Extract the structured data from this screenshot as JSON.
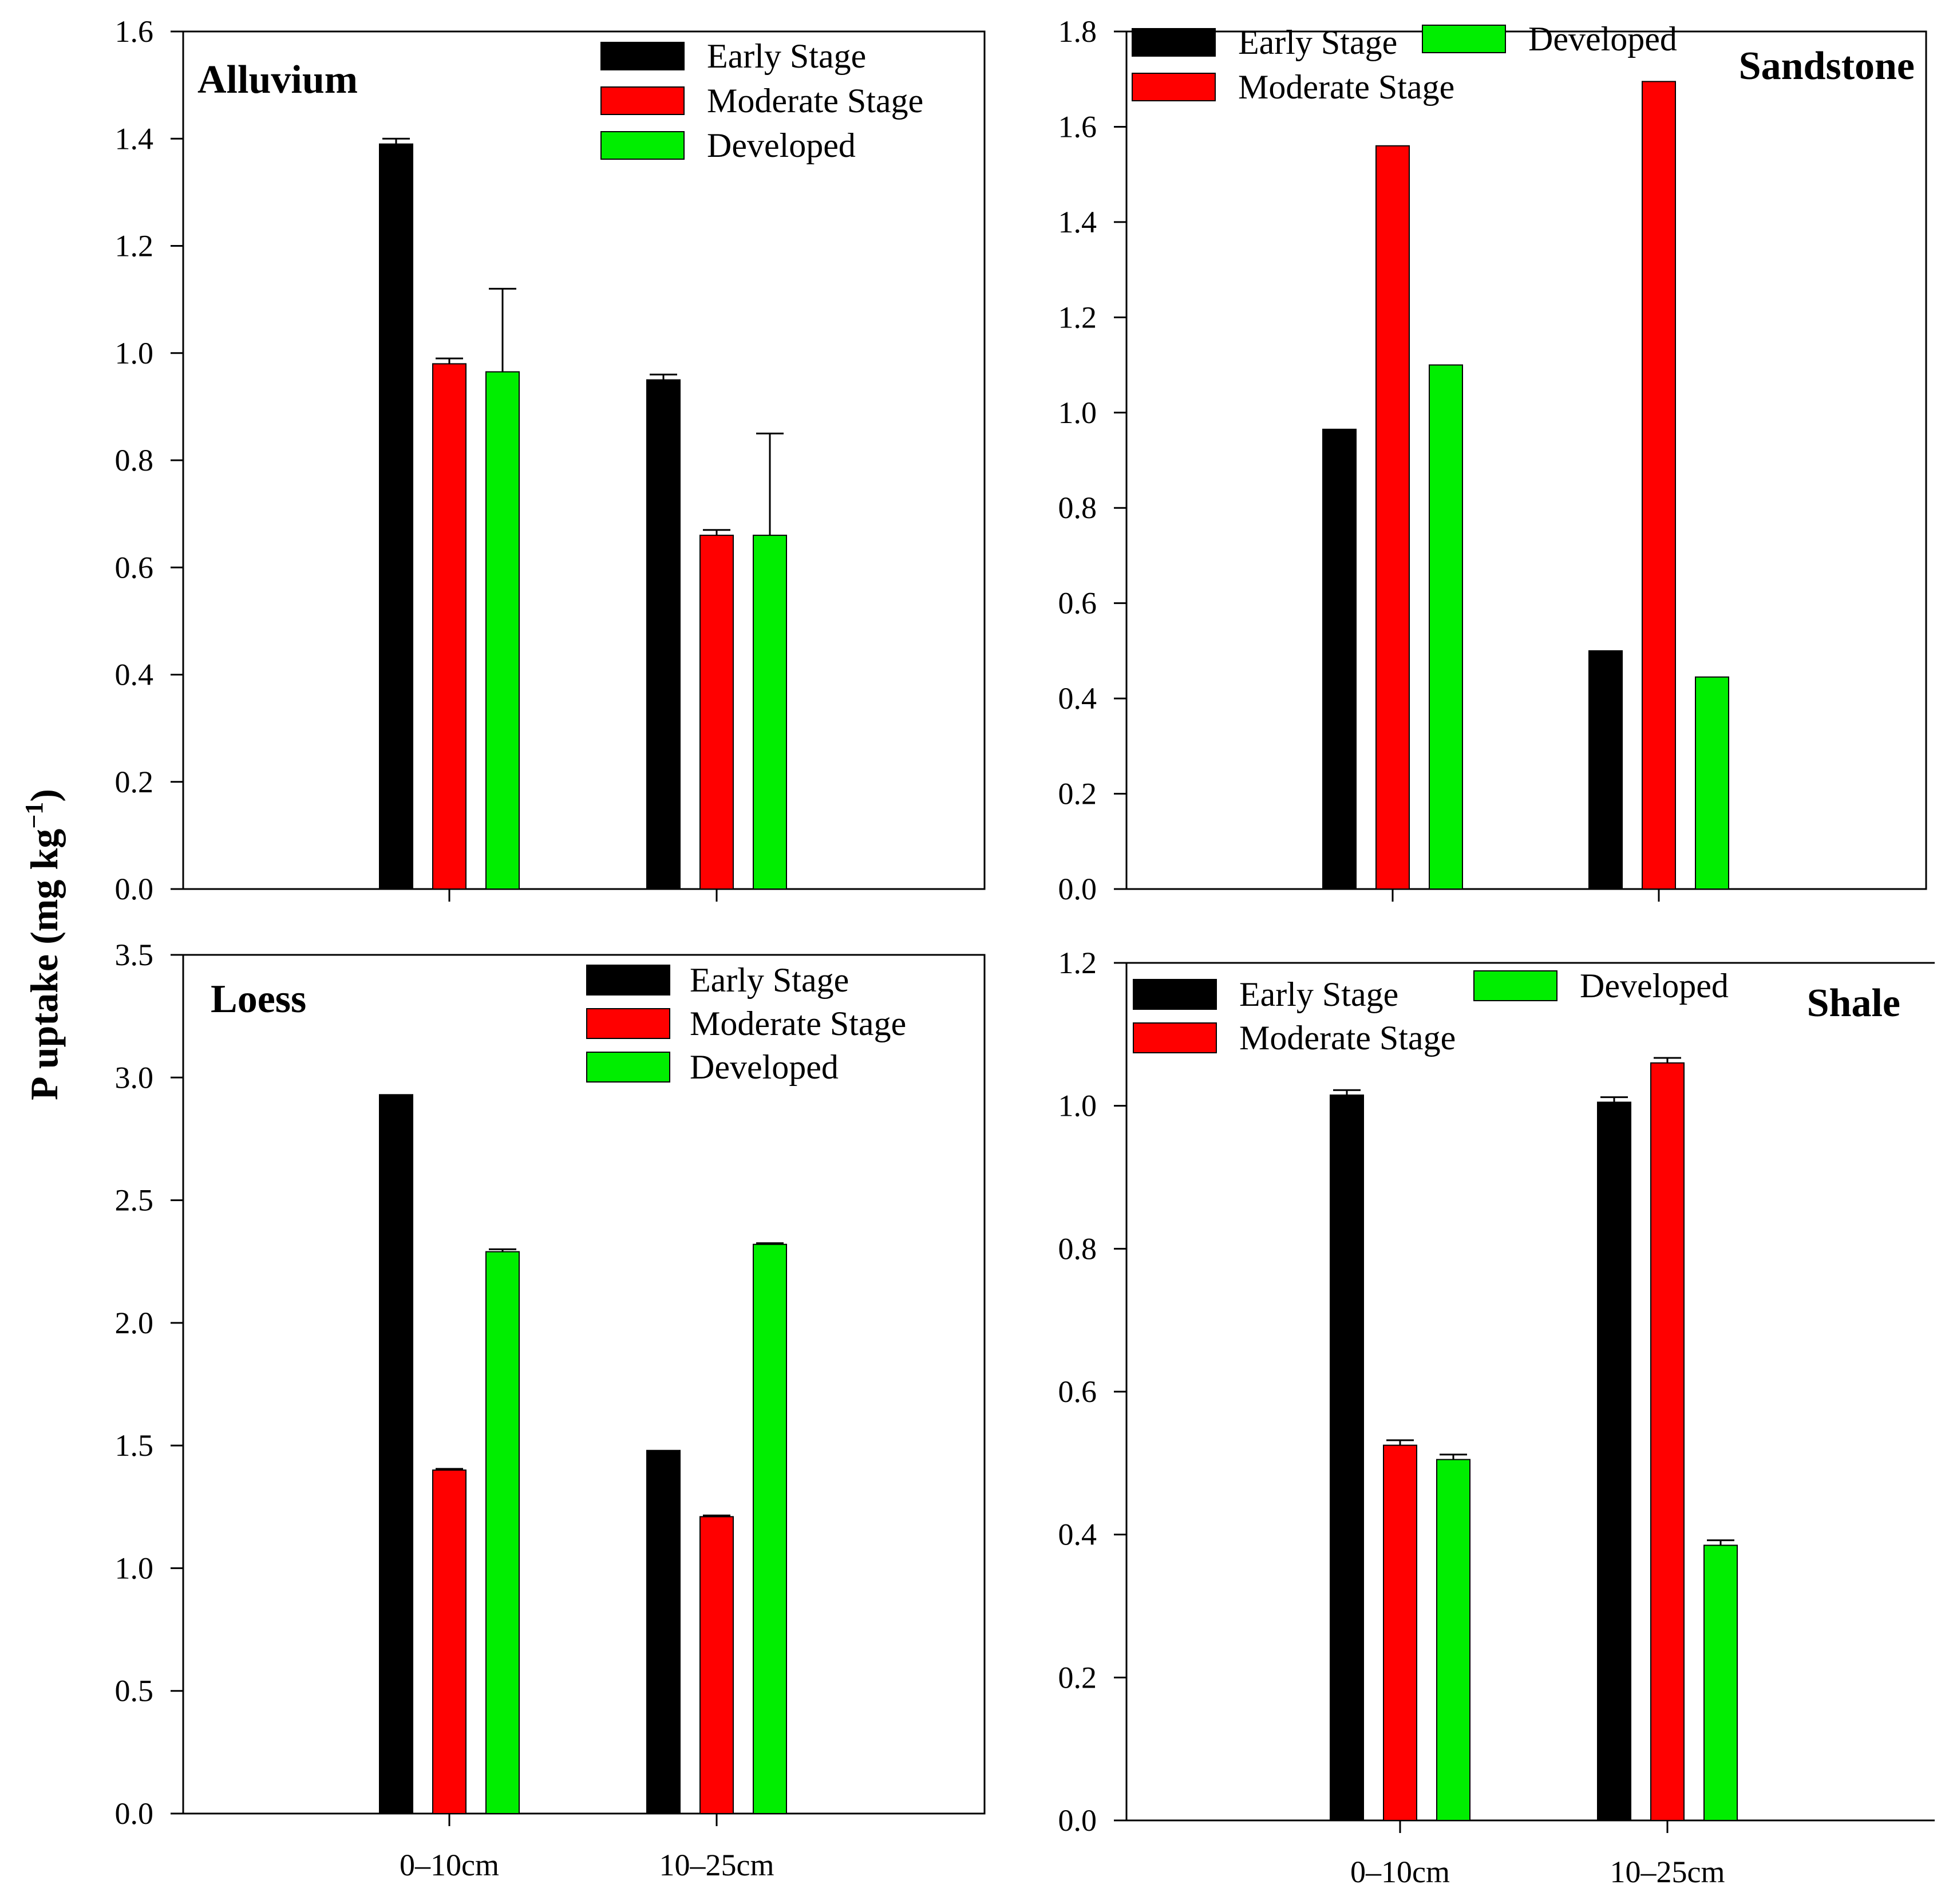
{
  "figure": {
    "ylabel": "P uptake (mg kg −1)",
    "ylabel_main": "P uptake (mg kg",
    "ylabel_sup": "−1",
    "ylabel_close": ")"
  },
  "colors": {
    "early": "#000000",
    "moderate": "#ff0000",
    "developed": "#00ee00"
  },
  "chart_data": [
    {
      "type": "bar",
      "title": "Alluvium",
      "categories": [
        "0–10cm",
        "10–25cm"
      ],
      "show_category_labels": false,
      "ylim": [
        0,
        1.6
      ],
      "yticks": [
        "0.0",
        "0.2",
        "0.4",
        "0.6",
        "0.8",
        "1.0",
        "1.2",
        "1.4",
        "1.6"
      ],
      "series": [
        {
          "name": "Early Stage",
          "values": [
            1.39,
            0.95
          ],
          "errors": [
            0.01,
            0.01
          ]
        },
        {
          "name": "Moderate Stage",
          "values": [
            0.98,
            0.66
          ],
          "errors": [
            0.01,
            0.01
          ]
        },
        {
          "name": "Developed",
          "values": [
            0.965,
            0.66
          ],
          "errors": [
            0.155,
            0.19
          ]
        }
      ],
      "legend": {
        "order": [
          "Early Stage",
          "Moderate Stage",
          "Developed"
        ],
        "placement": "top-right"
      }
    },
    {
      "type": "bar",
      "title": "Sandstone",
      "categories": [
        "0–10cm",
        "10–25cm"
      ],
      "show_category_labels": false,
      "ylim": [
        0,
        1.8
      ],
      "yticks": [
        "0.0",
        "0.2",
        "0.4",
        "0.6",
        "0.8",
        "1.0",
        "1.2",
        "1.4",
        "1.6",
        "1.8"
      ],
      "series": [
        {
          "name": "Early Stage",
          "values": [
            0.965,
            0.5
          ],
          "errors": [
            0,
            0
          ]
        },
        {
          "name": "Moderate Stage",
          "values": [
            1.56,
            1.695
          ],
          "errors": [
            0,
            0
          ]
        },
        {
          "name": "Developed",
          "values": [
            1.1,
            0.445
          ],
          "errors": [
            0,
            0
          ]
        }
      ],
      "legend": {
        "order": [
          "Early Stage",
          "Developed",
          "Moderate Stage"
        ],
        "placement": "top-left"
      }
    },
    {
      "type": "bar",
      "title": "Loess",
      "categories": [
        "0–10cm",
        "10–25cm"
      ],
      "show_category_labels": true,
      "ylim": [
        0,
        3.5
      ],
      "yticks": [
        "0.0",
        "0.5",
        "1.0",
        "1.5",
        "2.0",
        "2.5",
        "3.0",
        "3.5"
      ],
      "series": [
        {
          "name": "Early Stage",
          "values": [
            2.93,
            1.48
          ],
          "errors": [
            0,
            0
          ]
        },
        {
          "name": "Moderate Stage",
          "values": [
            1.4,
            1.21
          ],
          "errors": [
            0.005,
            0.005
          ]
        },
        {
          "name": "Developed",
          "values": [
            2.29,
            2.32
          ],
          "errors": [
            0.01,
            0.005
          ]
        }
      ],
      "legend": {
        "order": [
          "Early Stage",
          "Moderate Stage",
          "Developed"
        ],
        "placement": "top-right"
      }
    },
    {
      "type": "bar",
      "title": "Shale",
      "categories": [
        "0–10cm",
        "10–25cm"
      ],
      "show_category_labels": true,
      "ylim": [
        0,
        1.2
      ],
      "yticks": [
        "0.0",
        "0.2",
        "0.4",
        "0.6",
        "0.8",
        "1.0",
        "1.2"
      ],
      "series": [
        {
          "name": "Early Stage",
          "values": [
            1.015,
            1.005
          ],
          "errors": [
            0.007,
            0.007
          ]
        },
        {
          "name": "Moderate Stage",
          "values": [
            0.525,
            1.06
          ],
          "errors": [
            0.007,
            0.007
          ]
        },
        {
          "name": "Developed",
          "values": [
            0.505,
            0.385
          ],
          "errors": [
            0.007,
            0.007
          ]
        }
      ],
      "legend": {
        "order": [
          "Early Stage",
          "Developed",
          "Moderate Stage"
        ],
        "placement": "top-left"
      }
    }
  ]
}
